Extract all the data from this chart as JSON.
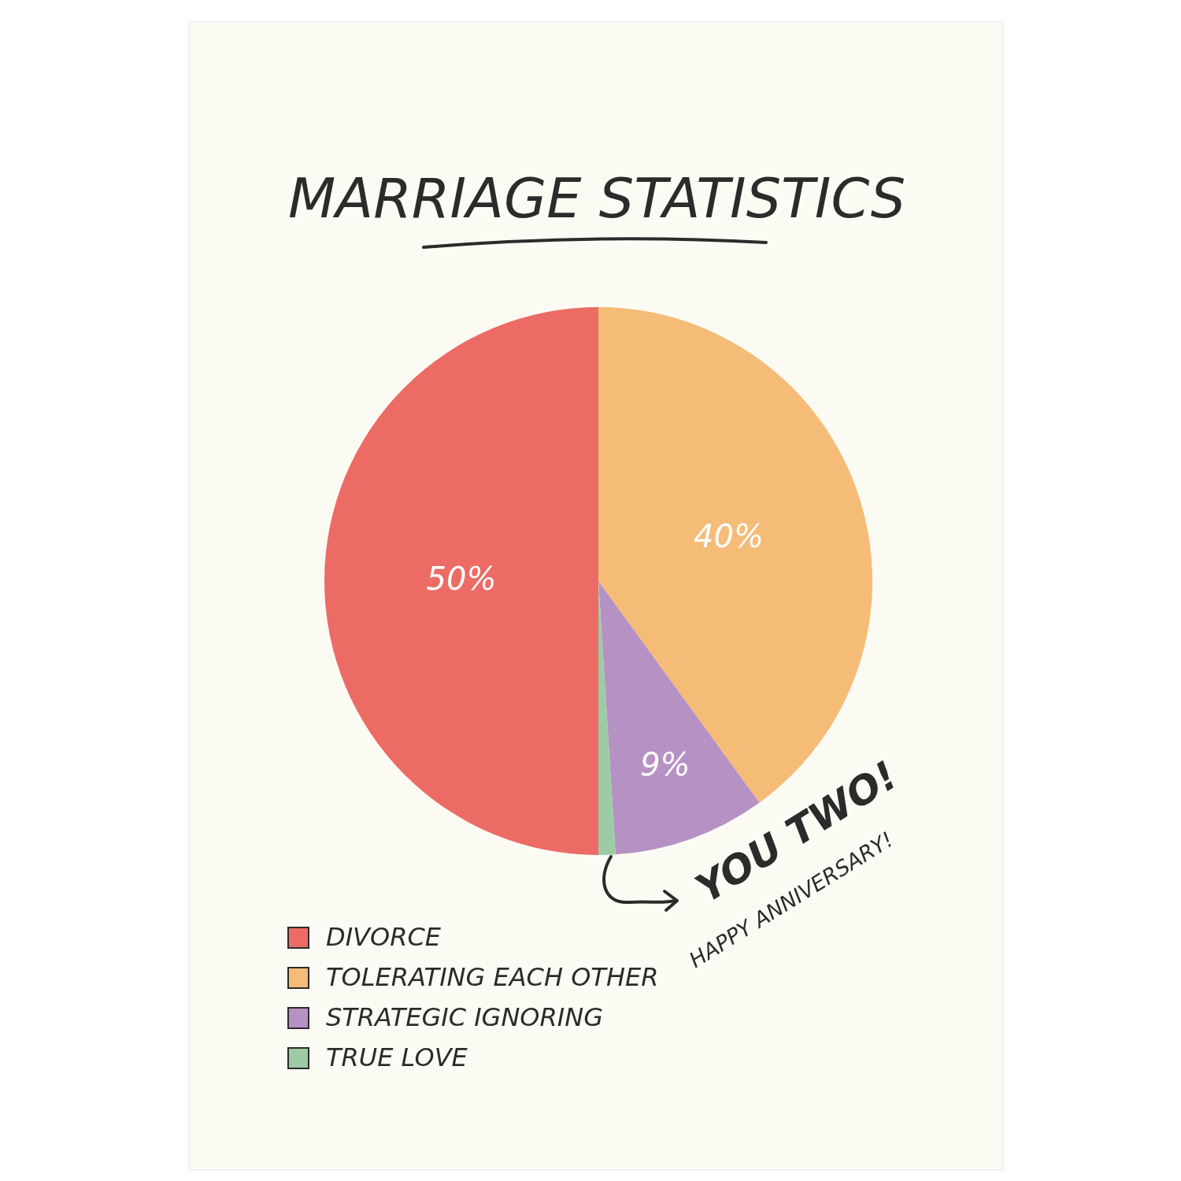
{
  "chart_data": {
    "type": "pie",
    "title": "MARRIAGE STATISTICS",
    "categories": [
      "DIVORCE",
      "TOLERATING EACH OTHER",
      "STRATEGIC IGNORING",
      "TRUE LOVE"
    ],
    "values": [
      50,
      40,
      9,
      1
    ],
    "colors": [
      "#ec6b65",
      "#f5bc78",
      "#b692c4",
      "#9ccba6"
    ],
    "value_labels": [
      "50%",
      "40%",
      "9%",
      null
    ],
    "legend": "bottom left",
    "annotations": [
      "YOU TWO!",
      "HAPPY ANNIVERSARY!"
    ]
  }
}
